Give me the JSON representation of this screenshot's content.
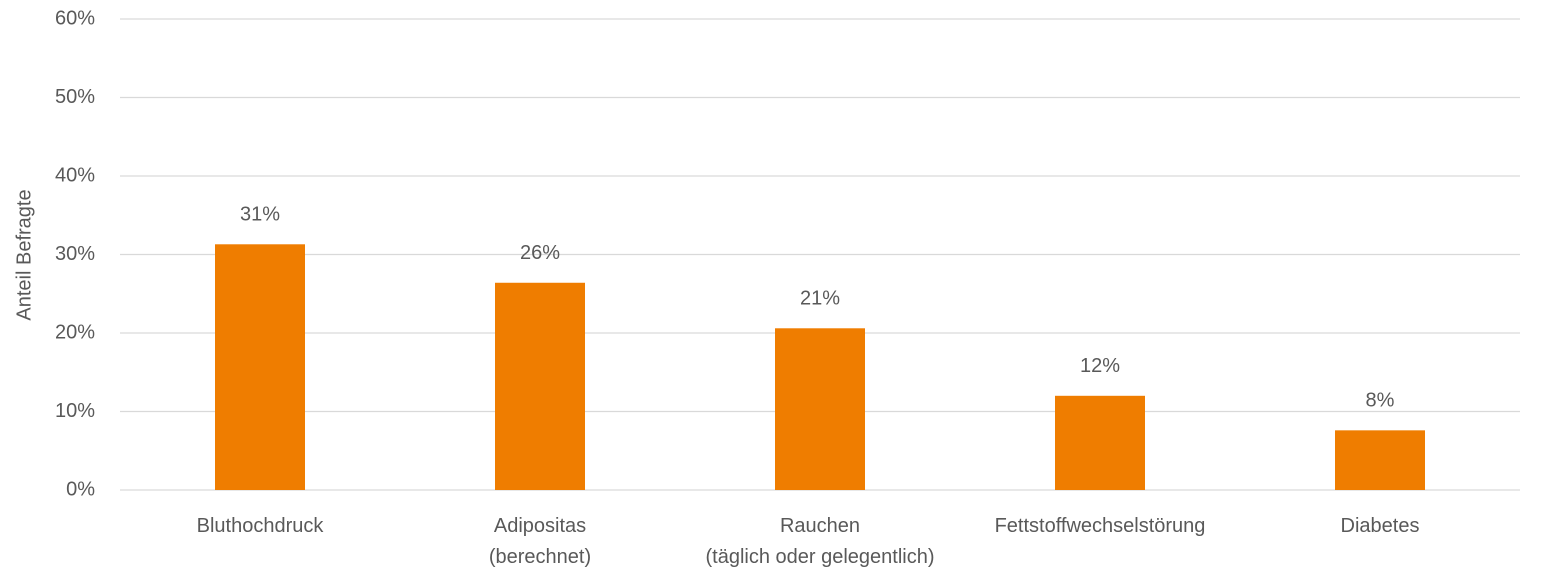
{
  "chart_data": {
    "type": "bar",
    "y_label": "Anteil Befragte",
    "categories": [
      "Bluthochdruck",
      "Adipositas\n(berechnet)",
      "Rauchen\n(täglich oder gelegentlich)",
      "Fettstoffwechselstörung",
      "Diabetes"
    ],
    "values": [
      31.3,
      26.4,
      20.6,
      12.0,
      7.6
    ],
    "value_labels": [
      "31%",
      "26%",
      "21%",
      "12%",
      "8%"
    ],
    "color": "#ef7d00",
    "ylim": [
      0,
      60
    ],
    "yticks": [
      {
        "value": 0,
        "label": "0%"
      },
      {
        "value": 10,
        "label": "10%"
      },
      {
        "value": 20,
        "label": "20%"
      },
      {
        "value": 30,
        "label": "30%"
      },
      {
        "value": 40,
        "label": "40%"
      },
      {
        "value": 50,
        "label": "50%"
      },
      {
        "value": 60,
        "label": "60%"
      }
    ],
    "grid": true
  }
}
